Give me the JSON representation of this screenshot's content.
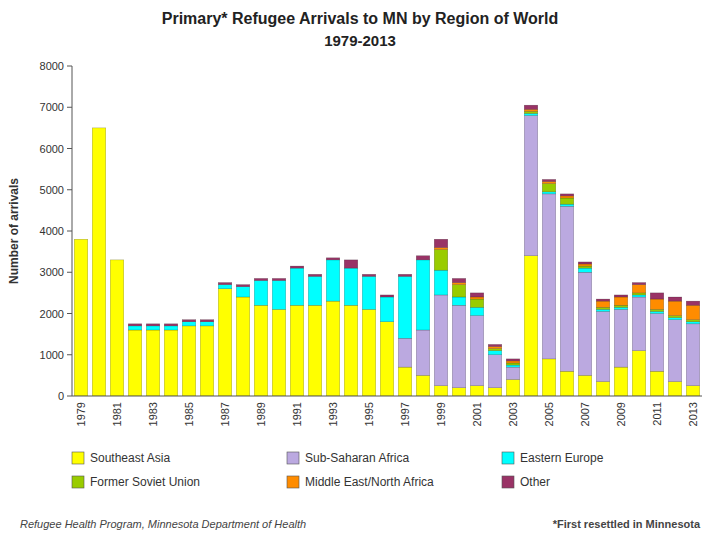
{
  "chart_data": {
    "type": "bar",
    "stacked": true,
    "title": "Primary* Refugee Arrivals to MN by Region of World",
    "subtitle": "1979-2013",
    "ylabel": "Number of arrivals",
    "annotations": [
      "Refugee Health Program, Minnesota Department of Health",
      "*First resettled in Minnesota"
    ],
    "categories": [
      "1979",
      null,
      "1981",
      null,
      "1983",
      null,
      "1985",
      null,
      "1987",
      null,
      "1989",
      null,
      "1991",
      null,
      "1993",
      null,
      "1995",
      null,
      "1997",
      null,
      "1999",
      null,
      "2001",
      null,
      "2003",
      null,
      "2005",
      null,
      "2007",
      null,
      "2009",
      null,
      "2011",
      null,
      "2013"
    ],
    "series": [
      {
        "name": "Southeast Asia",
        "color": "#FFFF00",
        "values": [
          3800,
          6500,
          3300,
          1600,
          1600,
          1600,
          1700,
          1700,
          2600,
          2400,
          2200,
          2100,
          2200,
          2200,
          2300,
          2200,
          2100,
          1800,
          700,
          500,
          250,
          200,
          250,
          200,
          400,
          3400,
          900,
          600,
          500,
          350,
          700,
          1100,
          600,
          350,
          250
        ]
      },
      {
        "name": "Sub-Saharan Africa",
        "color": "#BBA9E0",
        "values": [
          0,
          0,
          0,
          0,
          0,
          0,
          0,
          0,
          0,
          0,
          0,
          0,
          0,
          0,
          0,
          0,
          0,
          0,
          700,
          1100,
          2200,
          2000,
          1700,
          800,
          300,
          3400,
          4000,
          4000,
          2500,
          1700,
          1400,
          1300,
          1400,
          1500,
          1500
        ]
      },
      {
        "name": "Eastern Europe",
        "color": "#00FFFF",
        "values": [
          0,
          0,
          0,
          100,
          100,
          100,
          100,
          100,
          100,
          250,
          600,
          700,
          900,
          700,
          1000,
          900,
          800,
          600,
          1500,
          1700,
          600,
          200,
          200,
          100,
          50,
          50,
          50,
          50,
          100,
          50,
          50,
          50,
          50,
          50,
          50
        ]
      },
      {
        "name": "Former Soviet Union",
        "color": "#99CC00",
        "values": [
          0,
          0,
          0,
          0,
          0,
          0,
          0,
          0,
          0,
          0,
          0,
          0,
          0,
          0,
          0,
          0,
          0,
          0,
          0,
          0,
          500,
          300,
          200,
          50,
          50,
          50,
          200,
          150,
          50,
          50,
          50,
          50,
          50,
          50,
          50
        ]
      },
      {
        "name": "Middle East/North Africa",
        "color": "#FF8C00",
        "values": [
          0,
          0,
          0,
          0,
          0,
          0,
          0,
          0,
          0,
          0,
          0,
          0,
          0,
          0,
          0,
          0,
          0,
          0,
          0,
          0,
          50,
          50,
          50,
          50,
          50,
          50,
          50,
          50,
          50,
          150,
          200,
          200,
          250,
          350,
          350
        ]
      },
      {
        "name": "Other",
        "color": "#993366",
        "values": [
          0,
          0,
          0,
          50,
          50,
          50,
          50,
          50,
          50,
          50,
          50,
          50,
          50,
          50,
          50,
          200,
          50,
          50,
          50,
          100,
          200,
          100,
          100,
          50,
          50,
          100,
          50,
          50,
          50,
          50,
          50,
          50,
          150,
          100,
          100
        ]
      }
    ],
    "ylim": [
      0,
      8000
    ],
    "yticks": [
      0,
      1000,
      2000,
      3000,
      4000,
      5000,
      6000,
      7000,
      8000
    ],
    "grid": false,
    "legend": "bottom"
  }
}
